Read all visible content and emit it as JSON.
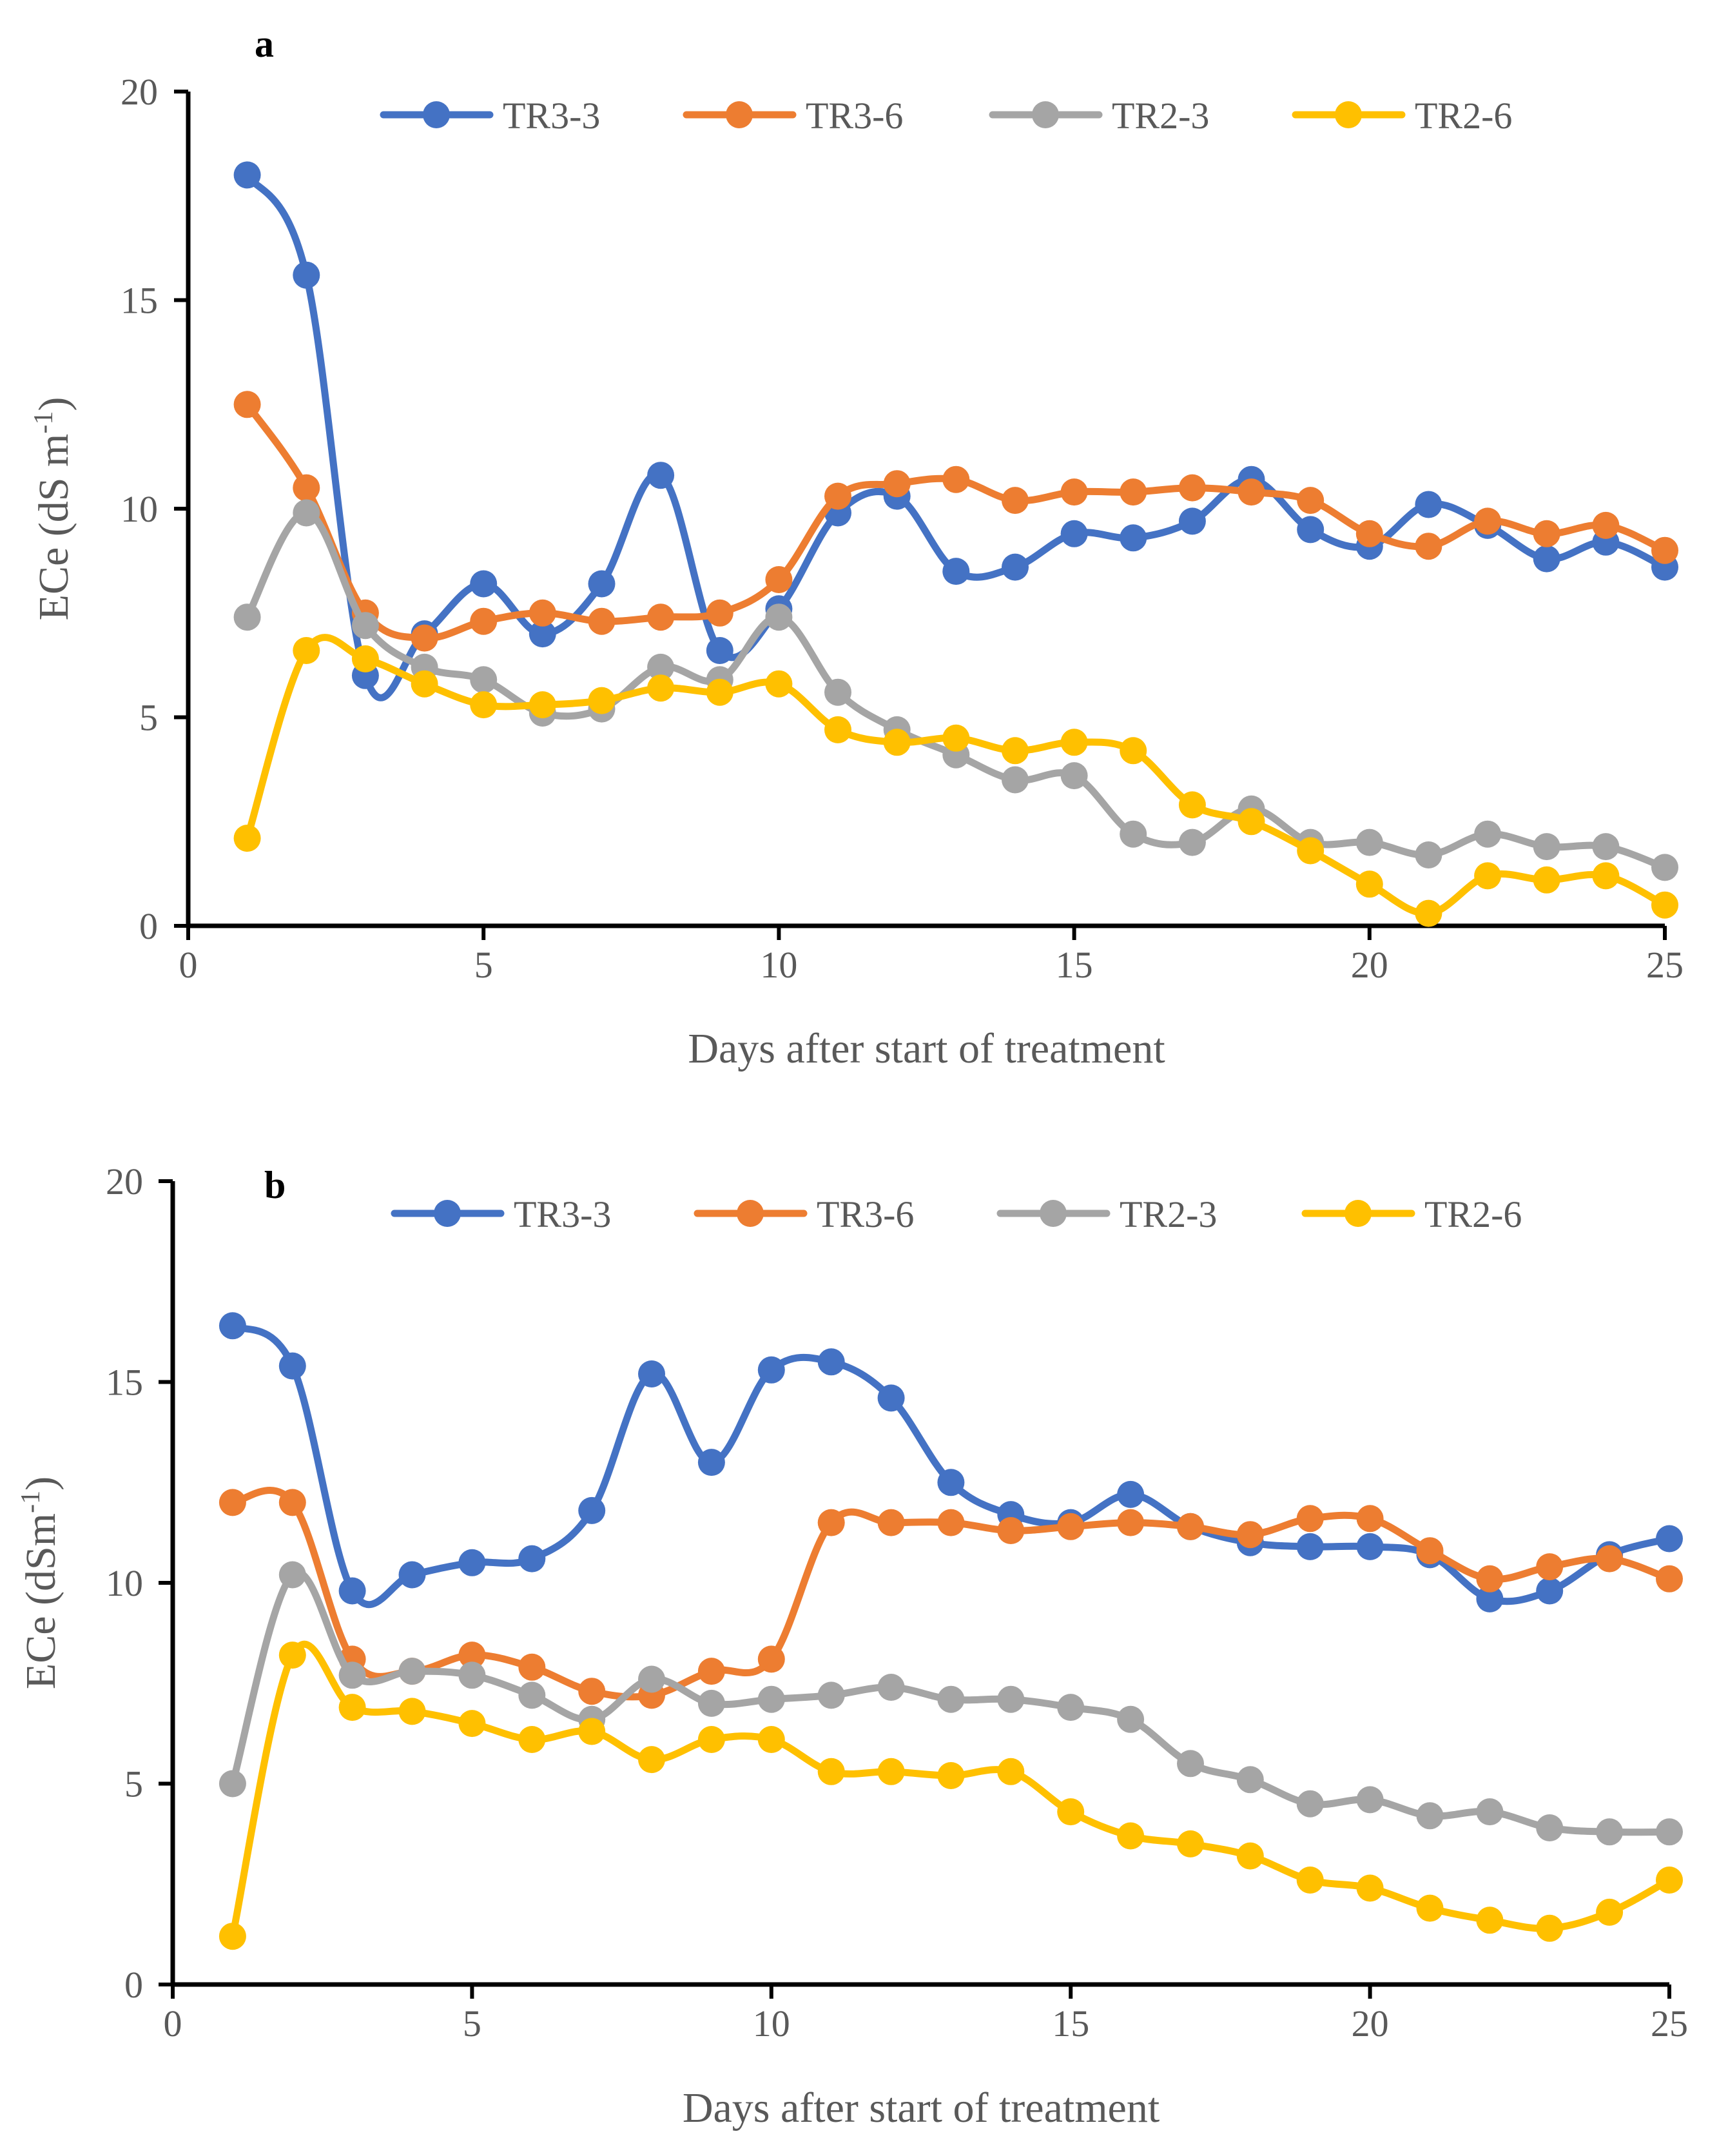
{
  "colors": {
    "TR3-3": "#4472C4",
    "TR3-6": "#ED7D31",
    "TR2-3": "#A5A5A5",
    "TR2-6": "#FFC000"
  },
  "chart_data": [
    {
      "type": "line",
      "panel_label": "a",
      "xlabel": "Days after start of treatment",
      "ylabel": "ECe (dS m",
      "ylabel_superscript": "-1",
      "ylabel_suffix": ")",
      "xlim": [
        0,
        25
      ],
      "ylim": [
        0,
        20
      ],
      "xticks": [
        0,
        5,
        10,
        15,
        20,
        25
      ],
      "yticks": [
        0,
        5,
        10,
        15,
        20
      ],
      "legend_position": "top",
      "x": [
        1,
        2,
        3,
        4,
        5,
        6,
        7,
        8,
        9,
        10,
        11,
        12,
        13,
        14,
        15,
        16,
        17,
        18,
        19,
        20,
        21,
        22,
        23,
        24,
        25
      ],
      "series": [
        {
          "name": "TR3-3",
          "values": [
            18.0,
            15.6,
            6.0,
            7.0,
            8.2,
            7.0,
            8.2,
            10.8,
            6.6,
            7.6,
            9.9,
            10.3,
            8.5,
            8.6,
            9.4,
            9.3,
            9.7,
            10.7,
            9.5,
            9.1,
            10.1,
            9.6,
            8.8,
            9.2,
            8.6
          ]
        },
        {
          "name": "TR3-6",
          "values": [
            12.5,
            10.5,
            7.5,
            6.9,
            7.3,
            7.5,
            7.3,
            7.4,
            7.5,
            8.3,
            10.3,
            10.6,
            10.7,
            10.2,
            10.4,
            10.4,
            10.5,
            10.4,
            10.2,
            9.4,
            9.1,
            9.7,
            9.4,
            9.6,
            9.0
          ]
        },
        {
          "name": "TR2-3",
          "values": [
            7.4,
            9.9,
            7.2,
            6.2,
            5.9,
            5.1,
            5.2,
            6.2,
            5.9,
            7.4,
            5.6,
            4.7,
            4.1,
            3.5,
            3.6,
            2.2,
            2.0,
            2.8,
            2.0,
            2.0,
            1.7,
            2.2,
            1.9,
            1.9,
            1.4
          ]
        },
        {
          "name": "TR2-6",
          "values": [
            2.1,
            6.6,
            6.4,
            5.8,
            5.3,
            5.3,
            5.4,
            5.7,
            5.6,
            5.8,
            4.7,
            4.4,
            4.5,
            4.2,
            4.4,
            4.2,
            2.9,
            2.5,
            1.8,
            1.0,
            0.3,
            1.2,
            1.1,
            1.2,
            0.5
          ]
        }
      ]
    },
    {
      "type": "line",
      "panel_label": "b",
      "xlabel": "Days after start of treatment",
      "ylabel": "ECe (dSm",
      "ylabel_superscript": "-1",
      "ylabel_suffix": ")",
      "xlim": [
        0,
        25
      ],
      "ylim": [
        0,
        20
      ],
      "xticks": [
        0,
        5,
        10,
        15,
        20,
        25
      ],
      "yticks": [
        0,
        5,
        10,
        15,
        20
      ],
      "legend_position": "top",
      "x": [
        1,
        2,
        3,
        4,
        5,
        6,
        7,
        8,
        9,
        10,
        11,
        12,
        13,
        14,
        15,
        16,
        17,
        18,
        19,
        20,
        21,
        22,
        23,
        24,
        25
      ],
      "series": [
        {
          "name": "TR3-3",
          "values": [
            16.4,
            15.4,
            9.8,
            10.2,
            10.5,
            10.6,
            11.8,
            15.2,
            13.0,
            15.3,
            15.5,
            14.6,
            12.5,
            11.7,
            11.5,
            12.2,
            11.4,
            11.0,
            10.9,
            10.9,
            10.7,
            9.6,
            9.8,
            10.7,
            11.1
          ]
        },
        {
          "name": "TR3-6",
          "values": [
            12.0,
            12.0,
            8.1,
            7.8,
            8.2,
            7.9,
            7.3,
            7.2,
            7.8,
            8.1,
            11.5,
            11.5,
            11.5,
            11.3,
            11.4,
            11.5,
            11.4,
            11.2,
            11.6,
            11.6,
            10.8,
            10.1,
            10.4,
            10.6,
            10.1
          ]
        },
        {
          "name": "TR2-3",
          "values": [
            5.0,
            10.2,
            7.7,
            7.8,
            7.7,
            7.2,
            6.6,
            7.6,
            7.0,
            7.1,
            7.2,
            7.4,
            7.1,
            7.1,
            6.9,
            6.6,
            5.5,
            5.1,
            4.5,
            4.6,
            4.2,
            4.3,
            3.9,
            3.8,
            3.8
          ]
        },
        {
          "name": "TR2-6",
          "values": [
            1.2,
            8.2,
            6.9,
            6.8,
            6.5,
            6.1,
            6.3,
            5.6,
            6.1,
            6.1,
            5.3,
            5.3,
            5.2,
            5.3,
            4.3,
            3.7,
            3.5,
            3.2,
            2.6,
            2.4,
            1.9,
            1.6,
            1.4,
            1.8,
            2.6
          ]
        }
      ]
    }
  ]
}
